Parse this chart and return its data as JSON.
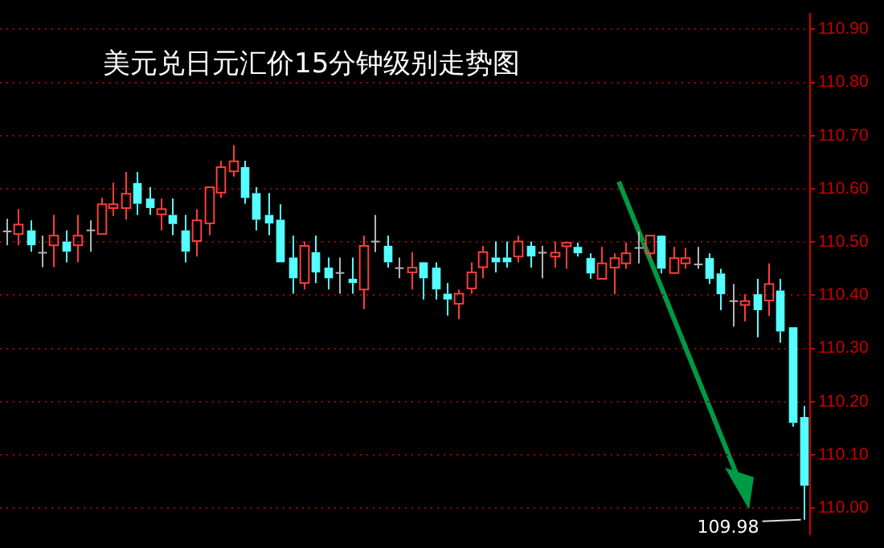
{
  "chart_data": {
    "type": "candlestick",
    "title": "美元兑日元汇价15分钟级别走势图",
    "categories": [
      null,
      null,
      null,
      null,
      null,
      null,
      null,
      null,
      null,
      null,
      null,
      null,
      null,
      null,
      null,
      null,
      null,
      null,
      null,
      null,
      null,
      null,
      null,
      null,
      null,
      null,
      null,
      null,
      null,
      null,
      null,
      null,
      null,
      null,
      null,
      null,
      null,
      null,
      null,
      null,
      null,
      null,
      null,
      null,
      null,
      null,
      null,
      null,
      null,
      null,
      null,
      null,
      null,
      null,
      null,
      null,
      null,
      null,
      null,
      null,
      null,
      null,
      null,
      null,
      null,
      null,
      null,
      null
    ],
    "ohlc": [
      [
        110.52,
        110.544,
        110.494,
        110.52
      ],
      [
        110.515,
        110.562,
        110.494,
        110.533
      ],
      [
        110.522,
        110.541,
        110.482,
        110.494
      ],
      [
        110.48,
        110.512,
        110.453,
        110.48
      ],
      [
        110.494,
        110.551,
        110.453,
        110.512
      ],
      [
        110.501,
        110.522,
        110.462,
        110.482
      ],
      [
        110.494,
        110.551,
        110.462,
        110.512
      ],
      [
        110.522,
        110.541,
        110.482,
        110.522
      ],
      [
        110.515,
        110.583,
        110.515,
        110.571
      ],
      [
        110.564,
        110.612,
        110.549,
        110.571
      ],
      [
        110.564,
        110.632,
        110.542,
        110.591
      ],
      [
        110.611,
        110.632,
        110.551,
        110.572
      ],
      [
        110.582,
        110.603,
        110.551,
        110.564
      ],
      [
        110.552,
        110.582,
        110.522,
        110.562
      ],
      [
        110.551,
        110.582,
        110.513,
        110.534
      ],
      [
        110.522,
        110.551,
        110.462,
        110.482
      ],
      [
        110.502,
        110.562,
        110.473,
        110.541
      ],
      [
        110.535,
        110.603,
        110.513,
        110.603
      ],
      [
        110.593,
        110.653,
        110.583,
        110.641
      ],
      [
        110.633,
        110.682,
        110.623,
        110.652
      ],
      [
        110.641,
        110.653,
        110.572,
        110.583
      ],
      [
        110.592,
        110.603,
        110.522,
        110.542
      ],
      [
        110.551,
        110.592,
        110.513,
        110.535
      ],
      [
        110.542,
        110.571,
        110.462,
        110.462
      ],
      [
        110.471,
        110.512,
        110.403,
        110.432
      ],
      [
        110.423,
        110.501,
        110.411,
        110.493
      ],
      [
        110.481,
        110.512,
        110.423,
        110.443
      ],
      [
        110.452,
        110.471,
        110.411,
        110.432
      ],
      [
        110.442,
        110.471,
        110.403,
        110.442
      ],
      [
        110.431,
        110.471,
        110.403,
        110.423
      ],
      [
        110.411,
        110.512,
        110.374,
        110.493
      ],
      [
        110.501,
        110.551,
        110.481,
        110.501
      ],
      [
        110.493,
        110.512,
        110.452,
        110.462
      ],
      [
        110.451,
        110.471,
        110.432,
        110.451
      ],
      [
        110.443,
        110.481,
        110.411,
        110.452
      ],
      [
        110.462,
        110.462,
        110.392,
        110.432
      ],
      [
        110.452,
        110.462,
        110.392,
        110.411
      ],
      [
        110.403,
        110.423,
        110.362,
        110.392
      ],
      [
        110.384,
        110.411,
        110.355,
        110.403
      ],
      [
        110.413,
        110.462,
        110.403,
        110.443
      ],
      [
        110.453,
        110.493,
        110.432,
        110.481
      ],
      [
        110.471,
        110.501,
        110.443,
        110.462
      ],
      [
        110.471,
        110.501,
        110.452,
        110.462
      ],
      [
        110.473,
        110.512,
        110.462,
        110.501
      ],
      [
        110.493,
        110.501,
        110.452,
        110.473
      ],
      [
        110.48,
        110.493,
        110.432,
        110.48
      ],
      [
        110.473,
        110.501,
        110.452,
        110.48
      ],
      [
        110.492,
        110.499,
        110.45,
        110.499
      ],
      [
        110.491,
        110.499,
        110.473,
        110.479
      ],
      [
        110.47,
        110.479,
        110.431,
        110.441
      ],
      [
        110.431,
        110.491,
        110.431,
        110.46
      ],
      [
        110.452,
        110.479,
        110.402,
        110.47
      ],
      [
        110.46,
        110.499,
        110.45,
        110.479
      ],
      [
        110.489,
        110.52,
        110.46,
        110.489
      ],
      [
        110.479,
        110.512,
        110.47,
        110.512
      ],
      [
        110.512,
        110.512,
        110.441,
        110.45
      ],
      [
        110.442,
        110.491,
        110.442,
        110.47
      ],
      [
        110.46,
        110.489,
        110.45,
        110.47
      ],
      [
        110.458,
        110.491,
        110.45,
        110.458
      ],
      [
        110.47,
        110.479,
        110.421,
        110.431
      ],
      [
        110.441,
        110.45,
        110.372,
        110.402
      ],
      [
        110.389,
        110.421,
        110.341,
        110.389
      ],
      [
        110.382,
        110.402,
        110.351,
        110.389
      ],
      [
        110.402,
        110.431,
        110.321,
        110.372
      ],
      [
        110.39,
        110.46,
        110.361,
        110.421
      ],
      [
        110.409,
        110.431,
        110.311,
        110.332
      ],
      [
        110.34,
        110.34,
        110.153,
        110.16
      ],
      [
        110.171,
        110.192,
        109.978,
        110.042
      ]
    ],
    "colors": [
      "#b4b4b4",
      "#ff3c3c",
      "#54ffff",
      "#b4b4b4",
      "#ff3c3c",
      "#54ffff",
      "#ff3c3c",
      "#b4b4b4",
      "#ff3c3c",
      "#ff3c3c",
      "#ff3c3c",
      "#54ffff",
      "#54ffff",
      "#ff3c3c",
      "#54ffff",
      "#54ffff",
      "#ff3c3c",
      "#ff3c3c",
      "#ff3c3c",
      "#ff3c3c",
      "#54ffff",
      "#54ffff",
      "#54ffff",
      "#54ffff",
      "#54ffff",
      "#ff3c3c",
      "#54ffff",
      "#54ffff",
      "#b4b4b4",
      "#54ffff",
      "#ff3c3c",
      "#b4b4b4",
      "#54ffff",
      "#b4b4b4",
      "#ff3c3c",
      "#54ffff",
      "#54ffff",
      "#54ffff",
      "#ff3c3c",
      "#ff3c3c",
      "#ff3c3c",
      "#54ffff",
      "#54ffff",
      "#ff3c3c",
      "#54ffff",
      "#b4b4b4",
      "#ff3c3c",
      "#ff3c3c",
      "#54ffff",
      "#54ffff",
      "#ff3c3c",
      "#ff3c3c",
      "#ff3c3c",
      "#b4b4b4",
      "#ff3c3c",
      "#54ffff",
      "#ff3c3c",
      "#ff3c3c",
      "#b4b4b4",
      "#54ffff",
      "#54ffff",
      "#b4b4b4",
      "#ff3c3c",
      "#54ffff",
      "#ff3c3c",
      "#54ffff",
      "#54ffff",
      "#54ffff"
    ],
    "ylim": [
      109.95,
      110.93
    ],
    "yticks": [
      {
        "value": 110.0,
        "label": "110.00"
      },
      {
        "value": 110.1,
        "label": "110.10"
      },
      {
        "value": 110.2,
        "label": "110.20"
      },
      {
        "value": 110.3,
        "label": "110.30"
      },
      {
        "value": 110.4,
        "label": "110.40"
      },
      {
        "value": 110.5,
        "label": "110.50"
      },
      {
        "value": 110.6,
        "label": "110.60"
      },
      {
        "value": 110.7,
        "label": "110.70"
      },
      {
        "value": 110.8,
        "label": "110.80"
      },
      {
        "value": 110.9,
        "label": "110.90"
      }
    ],
    "grid": "y",
    "legend": false,
    "tick_labels": "y",
    "annotations": [
      "109.98"
    ]
  }
}
